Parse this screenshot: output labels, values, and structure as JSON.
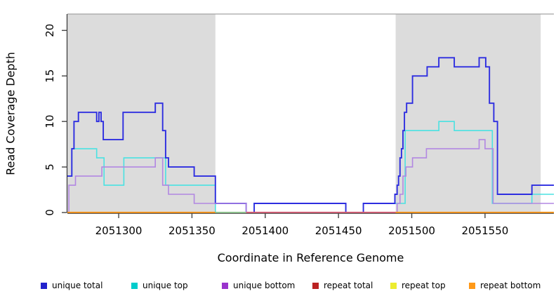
{
  "chart_data": {
    "type": "line",
    "step": true,
    "title": "",
    "xlabel": "Coordinate in Reference Genome",
    "ylabel": "Read Coverage Depth",
    "x_domain": [
      2051265,
      2051597
    ],
    "y_domain": [
      0,
      21.8
    ],
    "x_ticks": [
      2051300,
      2051350,
      2051400,
      2051450,
      2051500,
      2051550
    ],
    "y_ticks": [
      0,
      5,
      10,
      15,
      20
    ],
    "grid": false,
    "legend_position": "bottom",
    "shaded_regions": [
      {
        "from": 2051265,
        "to": 2051366,
        "color": "#dcdcdc"
      },
      {
        "from": 2051489,
        "to": 2051588,
        "color": "#dcdcdc"
      }
    ],
    "series": [
      {
        "name": "unique total",
        "color": "#2222cc",
        "line_color": "#2d2de0",
        "width": 1.9,
        "z": 2,
        "steps": [
          [
            2051265,
            4
          ],
          [
            2051268,
            7
          ],
          [
            2051269.5,
            10
          ],
          [
            2051272.5,
            11
          ],
          [
            2051285,
            10
          ],
          [
            2051286.5,
            11
          ],
          [
            2051288,
            10
          ],
          [
            2051289.5,
            8
          ],
          [
            2051303,
            11
          ],
          [
            2051325,
            12
          ],
          [
            2051330,
            9
          ],
          [
            2051332,
            6
          ],
          [
            2051334,
            5
          ],
          [
            2051351.5,
            4
          ],
          [
            2051366,
            1
          ],
          [
            2051387,
            0
          ],
          [
            2051392.5,
            1
          ],
          [
            2051455,
            0
          ],
          [
            2051467,
            1
          ],
          [
            2051488.5,
            2
          ],
          [
            2051490,
            3
          ],
          [
            2051491,
            4
          ],
          [
            2051492,
            6
          ],
          [
            2051493,
            7
          ],
          [
            2051494,
            9
          ],
          [
            2051495,
            11
          ],
          [
            2051496.5,
            12
          ],
          [
            2051500.5,
            15
          ],
          [
            2051510.5,
            16
          ],
          [
            2051518.5,
            17
          ],
          [
            2051529,
            16
          ],
          [
            2051546,
            17
          ],
          [
            2051550.5,
            16
          ],
          [
            2051553,
            12
          ],
          [
            2051556,
            10
          ],
          [
            2051558.5,
            2
          ],
          [
            2051582,
            3
          ]
        ]
      },
      {
        "name": "unique top",
        "color": "#00cccc",
        "line_color": "#4ae2e2",
        "width": 1.6,
        "z": 1,
        "steps": [
          [
            2051265,
            4
          ],
          [
            2051268,
            7
          ],
          [
            2051285,
            6
          ],
          [
            2051290,
            3
          ],
          [
            2051303.5,
            6
          ],
          [
            2051332,
            3
          ],
          [
            2051366,
            0
          ],
          [
            2051392.5,
            1
          ],
          [
            2051455,
            0
          ],
          [
            2051467,
            1
          ],
          [
            2051495.5,
            9
          ],
          [
            2051518.5,
            10
          ],
          [
            2051529,
            9
          ],
          [
            2051555,
            1
          ],
          [
            2051582,
            2
          ]
        ]
      },
      {
        "name": "unique bottom",
        "color": "#9933cc",
        "line_color": "#b287e2",
        "width": 1.6,
        "z": 3,
        "steps": [
          [
            2051265,
            0
          ],
          [
            2051266,
            3
          ],
          [
            2051270.5,
            4
          ],
          [
            2051288.5,
            5
          ],
          [
            2051325,
            6
          ],
          [
            2051330,
            3
          ],
          [
            2051334,
            2
          ],
          [
            2051351.5,
            1
          ],
          [
            2051387,
            0
          ],
          [
            2051490,
            1
          ],
          [
            2051492,
            2
          ],
          [
            2051494,
            4
          ],
          [
            2051496,
            5
          ],
          [
            2051500.5,
            6
          ],
          [
            2051510,
            7
          ],
          [
            2051546,
            8
          ],
          [
            2051550,
            7
          ],
          [
            2051555.5,
            1
          ]
        ]
      },
      {
        "name": "repeat total",
        "color": "#bb2222",
        "line_color": "#db6078",
        "width": 2,
        "z": 0,
        "steps": [
          [
            2051265,
            0
          ]
        ]
      },
      {
        "name": "repeat top",
        "color": "#ecec30",
        "line_color": "#ecec30",
        "width": 2,
        "z": 0,
        "steps": [
          [
            2051265,
            0
          ]
        ]
      },
      {
        "name": "repeat bottom",
        "color": "#ff9918",
        "line_color": "#ff9918",
        "width": 2,
        "z": 0,
        "steps": [
          [
            2051265,
            0
          ]
        ]
      }
    ],
    "baseline_segments": [
      {
        "from": 2051265,
        "to": 2051366,
        "color": "#ff9918",
        "name": "repeat-bottom-visible-left"
      },
      {
        "from": 2051366,
        "to": 2051387,
        "color": "#98d098",
        "name": "overlap-green-segment"
      },
      {
        "from": 2051387,
        "to": 2051489,
        "color": "#db6078",
        "name": "repeat-total-visible-middle"
      },
      {
        "from": 2051489,
        "to": 2051597,
        "color": "#ff9918",
        "name": "repeat-bottom-visible-right"
      }
    ]
  }
}
